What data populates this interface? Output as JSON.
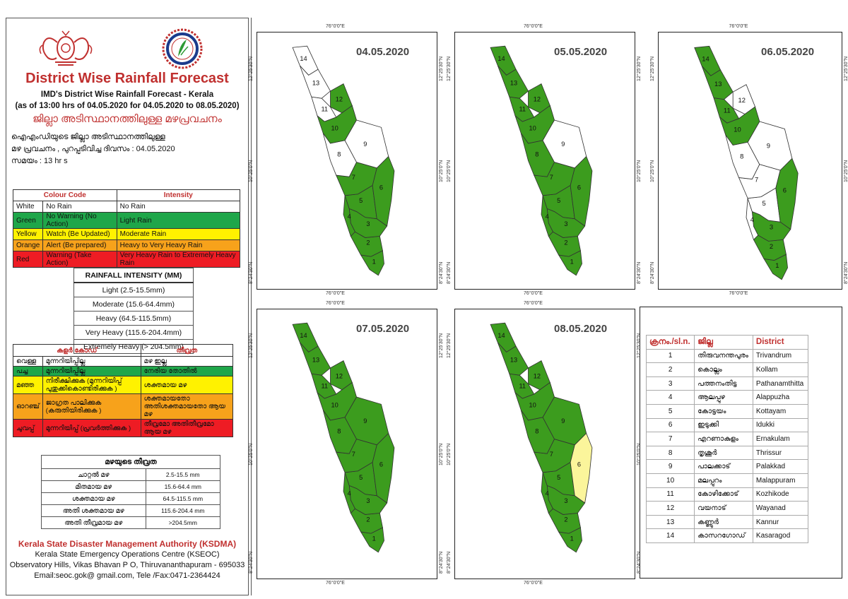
{
  "header": {
    "title": "District Wise Rainfall Forecast",
    "subtitle": "IMD's District Wise Rainfall Forecast - Kerala",
    "period": "(as of 13:00 hrs of 04.05.2020  for 04.05.2020  to 08.05.2020)",
    "title_ml": "ജില്ലാ അടിസ്ഥാനത്തിലുള്ള മഴപ്രവചനം",
    "line1_ml": "ഐഎംഡിയുടെ ജില്ലാ    അടിസ്ഥാനത്തിലുള്ള",
    "line2_ml": "മഴ പ്രവചനം  , പുറപ്പടിവിച്ച    ദിവസം : 04.05.2020",
    "line3_ml": "സമയം : 13   hr s"
  },
  "colour_code": {
    "col1": "Colour Code",
    "col2": "Intensity",
    "rows": [
      {
        "colour": "White",
        "desc": "No Rain",
        "intensity": "No Rain",
        "bg": "#ffffff"
      },
      {
        "colour": "Green",
        "desc": "No Warning (No Action)",
        "intensity": "Light Rain",
        "bg": "#1fa64a"
      },
      {
        "colour": "Yellow",
        "desc": "Watch (Be Updated)",
        "intensity": "Moderate Rain",
        "bg": "#fff200"
      },
      {
        "colour": "Orange",
        "desc": "Alert (Be prepared)",
        "intensity": "Heavy to Very Heavy Rain",
        "bg": "#f7a21b"
      },
      {
        "colour": "Red",
        "desc": "Warning (Take Action)",
        "intensity": "Very Heavy Rain to Extremely Heavy Rain",
        "bg": "#ee1c24"
      }
    ]
  },
  "rainfall_intensity": {
    "title": "RAINFALL INTENSITY (MM)",
    "rows": [
      "Light (2.5-15.5mm)",
      "Moderate (15.6-64.4mm)",
      "Heavy (64.5-115.5mm)",
      "Very Heavy (115.6-204.4mm)",
      "Extremely Heavy (> 204.5mm)"
    ]
  },
  "colour_code_ml": {
    "col1": "കളർ കോഡ്",
    "col2": "തീവ്രത",
    "rows": [
      {
        "colour": "വെള്ള",
        "desc": "മുന്നറിയിപ്പില്ല",
        "intensity": "മഴ ഇല്ല",
        "bg": "#ffffff"
      },
      {
        "colour": "പച്ച",
        "desc": "മുന്നറിയിപ്പില്ല",
        "intensity": "നേരിയ തോതിൽ",
        "bg": "#1fa64a"
      },
      {
        "colour": "മഞ്ഞ",
        "desc": "നിരീക്ഷിക്കുക (മുന്നറിയിപ്പ് പുതുക്കികൊണ്ടിരിക്കുക )",
        "intensity": "ശക്തമായ മഴ",
        "bg": "#fff200"
      },
      {
        "colour": "ഓറഞ്ച്",
        "desc": "ജാഗ്രത പാലിക്കുക (കരുതിയിരിക്കുക )",
        "intensity": "ശക്തമായതോ അതിശക്തമായതോ ആയ മഴ",
        "bg": "#f7a21b"
      },
      {
        "colour": "ചുവപ്പ്",
        "desc": "മുന്നറിയിപ്പ് (പ്രവർത്തിക്കുക )",
        "intensity": "തീവ്രമോ അതിതീവ്രമോ ആയ മഴ",
        "bg": "#ee1c24"
      }
    ]
  },
  "intensity_ml": {
    "title": "മഴയുടെ തീവ്രത",
    "rows": [
      {
        "label": "ചാറ്റൽ മഴ",
        "value": "2.5-15.5 mm"
      },
      {
        "label": "മിതമായ മഴ",
        "value": "15.6-64.4 mm"
      },
      {
        "label": "ശക്തമായ മഴ",
        "value": "64.5-115.5 mm"
      },
      {
        "label": "അതി ശക്തമായ മഴ",
        "value": "115.6-204.4 mm"
      },
      {
        "label": "അതി തീവ്രമായ മഴ",
        "value": ">204.5mm"
      }
    ]
  },
  "footer": {
    "org": "Kerala State Disaster Management Authority (KSDMA)",
    "centre": "Kerala State Emergency Operations Centre (KSEOC)",
    "address": "Observatory Hills, Vikas Bhavan P O, Thiruvananthapuram - 695033",
    "contact": "Email:seoc.gok@ gmail.com, Tele /Fax:0471-2364424"
  },
  "maps": [
    {
      "date": "04.05.2020",
      "colors": {
        "1": "#3c9c1e",
        "2": "#3c9c1e",
        "3": "#3c9c1e",
        "4": "#3c9c1e",
        "5": "#3c9c1e",
        "6": "#3c9c1e",
        "7": "#3c9c1e",
        "8": "#ffffff",
        "9": "#ffffff",
        "10": "#3c9c1e",
        "11": "#ffffff",
        "12": "#3c9c1e",
        "13": "#ffffff",
        "14": "#ffffff"
      }
    },
    {
      "date": "05.05.2020",
      "colors": {
        "1": "#3c9c1e",
        "2": "#3c9c1e",
        "3": "#3c9c1e",
        "4": "#3c9c1e",
        "5": "#3c9c1e",
        "6": "#3c9c1e",
        "7": "#3c9c1e",
        "8": "#3c9c1e",
        "9": "#ffffff",
        "10": "#3c9c1e",
        "11": "#3c9c1e",
        "12": "#3c9c1e",
        "13": "#3c9c1e",
        "14": "#3c9c1e"
      }
    },
    {
      "date": "06.05.2020",
      "colors": {
        "1": "#3c9c1e",
        "2": "#3c9c1e",
        "3": "#3c9c1e",
        "4": "#ffffff",
        "5": "#ffffff",
        "6": "#3c9c1e",
        "7": "#ffffff",
        "8": "#ffffff",
        "9": "#ffffff",
        "10": "#3c9c1e",
        "11": "#3c9c1e",
        "12": "#ffffff",
        "13": "#3c9c1e",
        "14": "#3c9c1e"
      }
    },
    {
      "date": "07.05.2020",
      "colors": {
        "1": "#3c9c1e",
        "2": "#3c9c1e",
        "3": "#3c9c1e",
        "4": "#3c9c1e",
        "5": "#3c9c1e",
        "6": "#3c9c1e",
        "7": "#3c9c1e",
        "8": "#3c9c1e",
        "9": "#3c9c1e",
        "10": "#3c9c1e",
        "11": "#3c9c1e",
        "12": "#3c9c1e",
        "13": "#3c9c1e",
        "14": "#3c9c1e"
      }
    },
    {
      "date": "08.05.2020",
      "colors": {
        "1": "#3c9c1e",
        "2": "#3c9c1e",
        "3": "#3c9c1e",
        "4": "#3c9c1e",
        "5": "#3c9c1e",
        "6": "#fbf59b",
        "7": "#3c9c1e",
        "8": "#3c9c1e",
        "9": "#3c9c1e",
        "10": "#3c9c1e",
        "11": "#3c9c1e",
        "12": "#3c9c1e",
        "13": "#3c9c1e",
        "14": "#3c9c1e"
      }
    }
  ],
  "axis_labels": {
    "lon": "76°0'0\"E",
    "lat_top": "12°25'30\"N",
    "lat_mid": "10°25'0\"N",
    "lat_bot": "8°24'30\"N"
  },
  "districts": {
    "headers": [
      "ക്രനം./sl.n.",
      "ജില്ല",
      "District"
    ],
    "rows": [
      {
        "n": "1",
        "ml": "തിരുവനന്തപുരം",
        "en": "Trivandrum"
      },
      {
        "n": "2",
        "ml": "കൊല്ലം",
        "en": "Kollam"
      },
      {
        "n": "3",
        "ml": "പത്തനംതിട്ട",
        "en": "Pathanamthitta"
      },
      {
        "n": "4",
        "ml": "ആലപ്പുഴ",
        "en": "Alappuzha"
      },
      {
        "n": "5",
        "ml": "കോട്ടയം",
        "en": "Kottayam"
      },
      {
        "n": "6",
        "ml": "ഇടുക്കി",
        "en": "Idukki"
      },
      {
        "n": "7",
        "ml": "എറണാകുളം",
        "en": "Ernakulam"
      },
      {
        "n": "8",
        "ml": "തൃശൂർ",
        "en": "Thrissur"
      },
      {
        "n": "9",
        "ml": "പാലക്കാട്",
        "en": "Palakkad"
      },
      {
        "n": "10",
        "ml": "മലപ്പുറം",
        "en": "Malappuram"
      },
      {
        "n": "11",
        "ml": "കോഴിക്കോട്",
        "en": "Kozhikode"
      },
      {
        "n": "12",
        "ml": "വയനാട്",
        "en": "Wayanad"
      },
      {
        "n": "13",
        "ml": "കണ്ണൂർ",
        "en": "Kannur"
      },
      {
        "n": "14",
        "ml": "കാസറഗോഡ്",
        "en": "Kasaragod"
      }
    ]
  }
}
